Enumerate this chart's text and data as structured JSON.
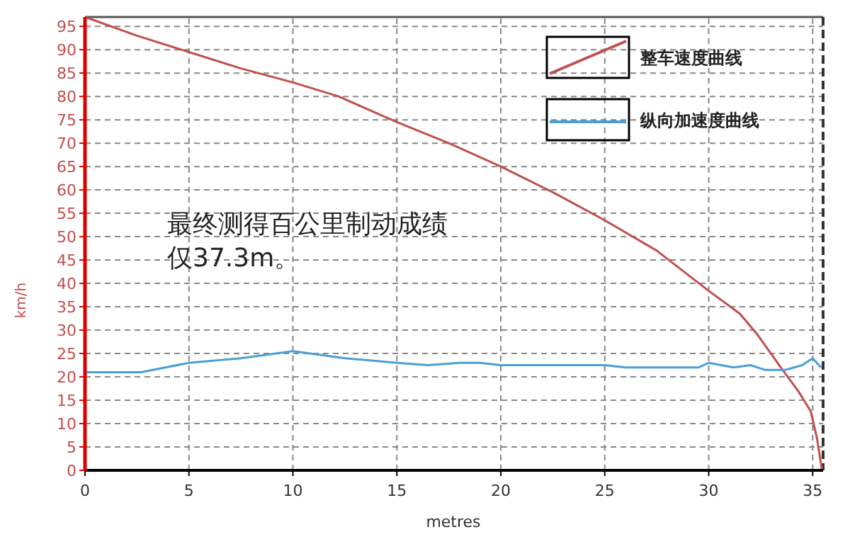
{
  "chart_data": {
    "type": "line",
    "xlabel": "metres",
    "ylabel": "km/h",
    "xlim": [
      0,
      35.5
    ],
    "ylim": [
      0,
      97
    ],
    "xticks": [
      0,
      5,
      10,
      15,
      20,
      25,
      30,
      35
    ],
    "yticks": [
      0,
      5,
      10,
      15,
      20,
      25,
      30,
      35,
      40,
      45,
      50,
      55,
      60,
      65,
      70,
      75,
      80,
      85,
      90,
      95
    ],
    "grid": true,
    "legend": "top right",
    "line_style": "solid",
    "marker": "none",
    "annotations": [
      "最终测得百公里制动成绩仅37.3m。"
    ],
    "series": [
      {
        "name": "整车速度曲线",
        "color": "#c0504d",
        "x": [
          0,
          2.5,
          5,
          7.5,
          10,
          12.2,
          15,
          17.5,
          20,
          22.5,
          25,
          27.5,
          30,
          31.5,
          32.3,
          33.5,
          34.3,
          34.9,
          35.2,
          35.45
        ],
        "values": [
          97,
          93,
          89.5,
          86,
          83,
          80,
          74.5,
          70,
          65,
          59.5,
          53.5,
          47,
          38.4,
          33.5,
          29.3,
          21.8,
          17,
          12.7,
          7,
          0
        ]
      },
      {
        "name": "纵向加速度曲线",
        "color": "#4a9fd4",
        "x": [
          0,
          2.7,
          5,
          7.5,
          10,
          12.5,
          15,
          16.5,
          18,
          19,
          20,
          25,
          26,
          29.5,
          30,
          31.2,
          32,
          32.7,
          33.7,
          34.5,
          35,
          35.4
        ],
        "values": [
          21,
          21,
          23,
          24,
          25.5,
          24,
          23,
          22.5,
          23,
          23,
          22.5,
          22.5,
          22,
          22,
          23,
          22,
          22.5,
          21.5,
          21.5,
          22.5,
          24,
          22
        ]
      }
    ]
  }
}
